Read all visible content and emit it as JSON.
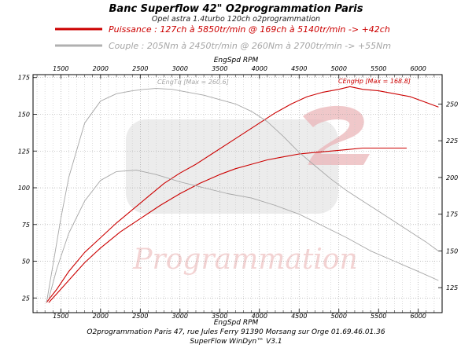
{
  "header": {
    "title": "Banc Superflow 42\" O2programmation Paris",
    "subtitle": "Opel astra 1.4turbo 120ch o2programmation"
  },
  "chart_data": {
    "type": "line",
    "x_axis_label": "EngSpd RPM",
    "x_ticks": [
      1500,
      2000,
      2500,
      3000,
      3500,
      4000,
      4500,
      5000,
      5500,
      6000
    ],
    "xlim": [
      1150,
      6300
    ],
    "left_axis": {
      "ticks": [
        25,
        50,
        75,
        100,
        125,
        150,
        175
      ],
      "ylim": [
        15,
        177
      ]
    },
    "right_axis": {
      "ticks": [
        125,
        150,
        175,
        200,
        225,
        250
      ],
      "ylim": [
        108,
        270
      ]
    },
    "legend": [
      {
        "name": "Puissance : 127ch à 5850tr/min @ 169ch à 5140tr/min  -> +42ch",
        "color": "#cc0000"
      },
      {
        "name": "Couple :  205Nm à 2450tr/min @ 260Nm à 2700tr/min -> +55Nm",
        "color": "#a6a6a6"
      }
    ],
    "annotations": {
      "torque_max": "CEngTq [Max = 260.6]",
      "power_max": "CEngHp [Max = 168.8]"
    },
    "watermark": "Programmation",
    "series": [
      {
        "name": "Puissance : 127ch à 5850tr/min @ 169ch à 5140tr/min  -> +42ch",
        "axis": "left",
        "color": "#cc0000",
        "width": 1.1,
        "x": [
          1350,
          1450,
          1600,
          1800,
          2000,
          2250,
          2500,
          2750,
          3000,
          3250,
          3500,
          3700,
          3900,
          4100,
          4300,
          4500,
          4700,
          4900,
          5100,
          5300,
          5500,
          5700,
          5850
        ],
        "y": [
          22,
          28,
          37,
          49,
          59,
          70,
          79,
          88,
          96,
          103,
          109,
          113,
          116,
          119,
          121,
          123,
          124,
          125,
          126,
          127,
          127,
          127,
          127
        ]
      },
      {
        "name": "CEngHp [Max = 168.8]",
        "axis": "left",
        "color": "#cc0000",
        "width": 1.1,
        "x": [
          1320,
          1450,
          1600,
          1800,
          2000,
          2200,
          2400,
          2600,
          2800,
          3000,
          3200,
          3400,
          3600,
          3800,
          4000,
          4200,
          4400,
          4600,
          4800,
          5000,
          5140,
          5300,
          5500,
          5700,
          5900,
          6100,
          6250
        ],
        "y": [
          22,
          31,
          43,
          56,
          66,
          76,
          85,
          94,
          103,
          110,
          116,
          123,
          130,
          137,
          144,
          151,
          157,
          162,
          165,
          167,
          168.8,
          167,
          166,
          164,
          162,
          158,
          155
        ]
      },
      {
        "name": "Couple :  205Nm à 2450tr/min @ 260Nm à 2700tr/min -> +55Nm",
        "axis": "right",
        "color": "#a6a6a6",
        "width": 0.9,
        "x": [
          1350,
          1450,
          1600,
          1800,
          2000,
          2200,
          2450,
          2700,
          3000,
          3300,
          3600,
          3900,
          4200,
          4500,
          4800,
          5100,
          5400,
          5700,
          6000,
          6250
        ],
        "y": [
          118,
          138,
          162,
          184,
          198,
          204,
          205,
          202,
          197,
          193,
          189,
          186,
          181,
          175,
          167,
          159,
          150,
          143,
          136,
          130
        ]
      },
      {
        "name": "CEngTq [Max = 260.6]",
        "axis": "right",
        "color": "#a6a6a6",
        "width": 0.9,
        "x": [
          1320,
          1400,
          1500,
          1600,
          1800,
          2000,
          2200,
          2400,
          2550,
          2700,
          2900,
          3100,
          3300,
          3500,
          3700,
          3900,
          4100,
          4300,
          4500,
          4700,
          4900,
          5100,
          5300,
          5500,
          5700,
          5900,
          6100,
          6250
        ],
        "y": [
          115,
          140,
          172,
          200,
          237,
          252,
          257,
          259,
          260,
          260.6,
          260,
          258,
          256,
          253,
          250,
          245,
          238,
          228,
          217,
          208,
          199,
          191,
          184,
          177,
          170,
          163,
          156,
          150
        ]
      }
    ]
  },
  "footer": {
    "line1": "O2programmation Paris 47, rue Jules Ferry 91390 Morsang sur Orge 01.69.46.01.36",
    "line2": "SuperFlow WinDyn™ V3.1"
  }
}
